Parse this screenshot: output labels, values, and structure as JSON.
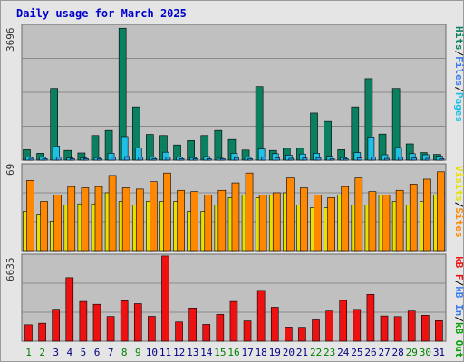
{
  "chart_title": "Daily usage for March 2025",
  "colors": {
    "hits": "#0b8060",
    "files": "#1ec0e4",
    "pages": "#2ea0ee",
    "visits": "#e8e000",
    "sites": "#ff8800",
    "kb_in": "#3a7cf0",
    "kb_out": "#00a000",
    "kb_f": "#ee1111",
    "day_normal": "#008000",
    "day_highlight": "#000080"
  },
  "legends": {
    "top": [
      {
        "text": "Hits",
        "color": "#0b8060"
      },
      {
        "text": "/",
        "color": "#000000"
      },
      {
        "text": "Files",
        "color": "#3a7cf0"
      },
      {
        "text": "/",
        "color": "#000000"
      },
      {
        "text": "Pages",
        "color": "#1ec0e4"
      }
    ],
    "middle": [
      {
        "text": "Visits",
        "color": "#e8e000"
      },
      {
        "text": "/",
        "color": "#000000"
      },
      {
        "text": "Sites",
        "color": "#ff8800"
      }
    ],
    "bottom": [
      {
        "text": "kB F",
        "color": "#ee1111"
      },
      {
        "text": "/",
        "color": "#000000"
      },
      {
        "text": "kB In",
        "color": "#3a7cf0"
      },
      {
        "text": "/",
        "color": "#000000"
      },
      {
        "text": "kB Out",
        "color": "#00a000"
      }
    ]
  },
  "chart_data": {
    "type": "bar",
    "title": "Daily usage for March 2025",
    "categories": [
      "1",
      "2",
      "3",
      "4",
      "5",
      "6",
      "7",
      "8",
      "9",
      "10",
      "11",
      "12",
      "13",
      "14",
      "15",
      "16",
      "17",
      "18",
      "19",
      "20",
      "21",
      "22",
      "23",
      "24",
      "25",
      "26",
      "27",
      "28",
      "29",
      "30",
      "31"
    ],
    "highlighted_days": [
      "1",
      "2",
      "8",
      "9",
      "15",
      "16",
      "22",
      "23",
      "29",
      "30"
    ],
    "panels": [
      {
        "name": "top",
        "max_label": "3696",
        "ymax": 3696,
        "series": [
          {
            "name": "Hits",
            "values": [
              290,
              190,
              1980,
              270,
              200,
              680,
              820,
              3640,
              1470,
              710,
              680,
              420,
              540,
              680,
              820,
              570,
              280,
              2030,
              270,
              330,
              330,
              1300,
              1070,
              290,
              1470,
              2250,
              720,
              1980,
              450,
              210,
              160
            ]
          },
          {
            "name": "Files",
            "values": [
              90,
              80,
              390,
              60,
              60,
              70,
              190,
              650,
              340,
              80,
              220,
              80,
              70,
              100,
              50,
              190,
              80,
              310,
              180,
              140,
              170,
              190,
              110,
              70,
              210,
              640,
              150,
              350,
              180,
              150,
              110
            ]
          },
          {
            "name": "Pages",
            "values": [
              50,
              40,
              90,
              40,
              40,
              40,
              80,
              100,
              90,
              40,
              90,
              40,
              40,
              40,
              40,
              70,
              40,
              80,
              60,
              50,
              60,
              70,
              40,
              40,
              60,
              90,
              50,
              80,
              60,
              50,
              40
            ]
          }
        ]
      },
      {
        "name": "middle",
        "max_label": "69",
        "ymax": 69,
        "series": [
          {
            "name": "Visits",
            "values": [
              32,
              29,
              24,
              37,
              38,
              38,
              47,
              40,
              37,
              40,
              40,
              40,
              32,
              32,
              37,
              43,
              45,
              43,
              45,
              47,
              37,
              35,
              35,
              45,
              37,
              37,
              45,
              40,
              37,
              40,
              45
            ]
          },
          {
            "name": "Sites",
            "values": [
              57,
              40,
              45,
              52,
              51,
              52,
              61,
              51,
              50,
              56,
              63,
              49,
              48,
              45,
              49,
              55,
              63,
              45,
              47,
              59,
              51,
              45,
              43,
              52,
              59,
              48,
              45,
              49,
              54,
              58,
              64
            ]
          }
        ]
      },
      {
        "name": "bottom",
        "max_label": "6635",
        "ymax": 6635,
        "series": [
          {
            "name": "kB F",
            "values": [
              1280,
              1400,
              2490,
              4950,
              3100,
              2880,
              1930,
              3150,
              2930,
              1940,
              6640,
              1500,
              2590,
              1310,
              2090,
              3100,
              1580,
              3960,
              2650,
              1100,
              1080,
              1660,
              2350,
              3180,
              2480,
              3650,
              1970,
              1920,
              2350,
              2020,
              1600
            ]
          }
        ]
      }
    ]
  }
}
